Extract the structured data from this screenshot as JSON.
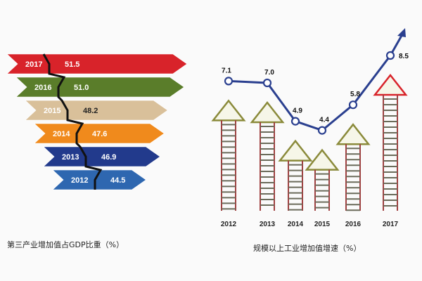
{
  "chart_data": [
    {
      "type": "bar",
      "title": "第三产业增加值占GDP比重（%）",
      "categories": [
        "2012",
        "2013",
        "2014",
        "2015",
        "2016",
        "2017"
      ],
      "values": [
        44.5,
        46.9,
        47.6,
        48.2,
        51.0,
        51.5
      ],
      "value_labels": [
        "44.5",
        "46.9",
        "47.6",
        "48.2",
        "51.0",
        "51.5"
      ],
      "colors": [
        "#2e67b0",
        "#223a8c",
        "#f08a1c",
        "#d9c09a",
        "#5a7d2a",
        "#d8232a"
      ],
      "xlim": [
        40,
        52
      ]
    },
    {
      "type": "line",
      "title": "规模以上工业增加值增速（%）",
      "categories": [
        "2012",
        "2013",
        "2014",
        "2015",
        "2016",
        "2017"
      ],
      "values": [
        7.1,
        7.0,
        4.9,
        4.4,
        5.8,
        8.5
      ],
      "value_labels": [
        "7.1",
        "7.0",
        "4.9",
        "4.4",
        "5.8",
        "8.5"
      ],
      "line_color": "#2a3f8f",
      "arrow_colors": [
        "#8a8a3a",
        "#8a8a3a",
        "#8a8a3a",
        "#8a8a3a",
        "#8a8a3a",
        "#d8232a"
      ],
      "ylim": [
        0,
        10
      ]
    }
  ]
}
